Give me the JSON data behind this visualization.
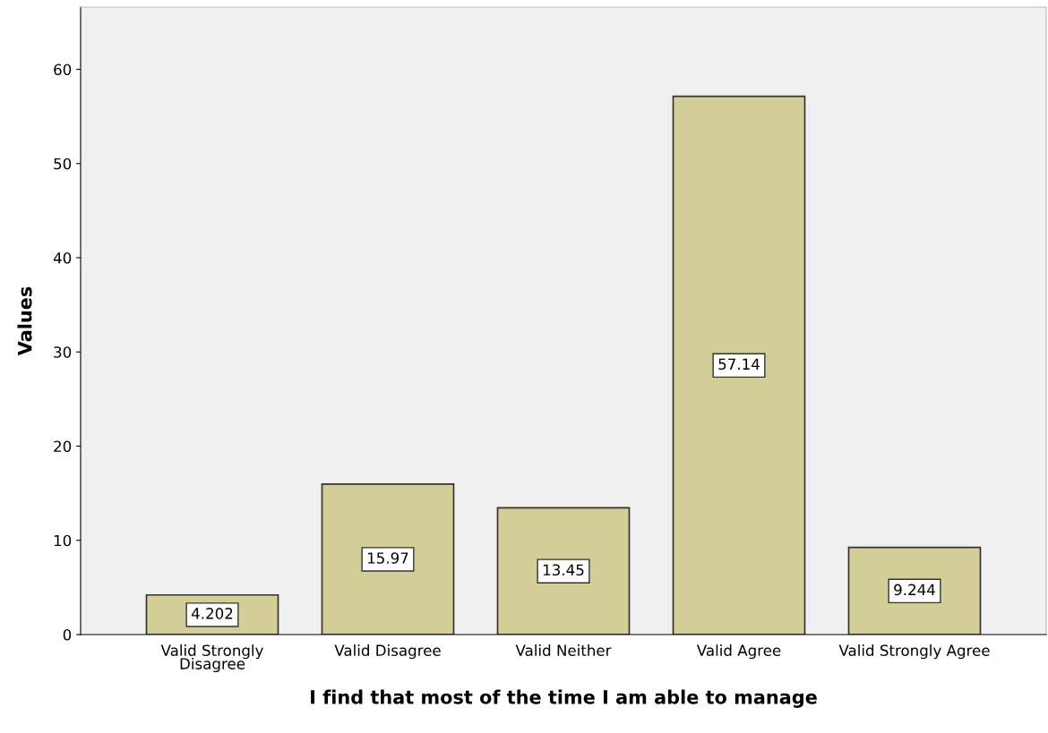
{
  "chart_data": {
    "type": "bar",
    "xlabel": "I find that most of the time I am able to manage",
    "ylabel": "Values",
    "categories": [
      "Valid Strongly\nDisagree",
      "Valid Disagree",
      "Valid Neither",
      "Valid Agree",
      "Valid Strongly Agree"
    ],
    "values": [
      4.202,
      15.97,
      13.45,
      57.14,
      9.244
    ],
    "color": "#d3ce97",
    "ylim": [
      0,
      66.6
    ],
    "yticks": [
      0,
      10,
      20,
      30,
      40,
      50,
      60
    ],
    "grid": false,
    "data_labels": true
  }
}
